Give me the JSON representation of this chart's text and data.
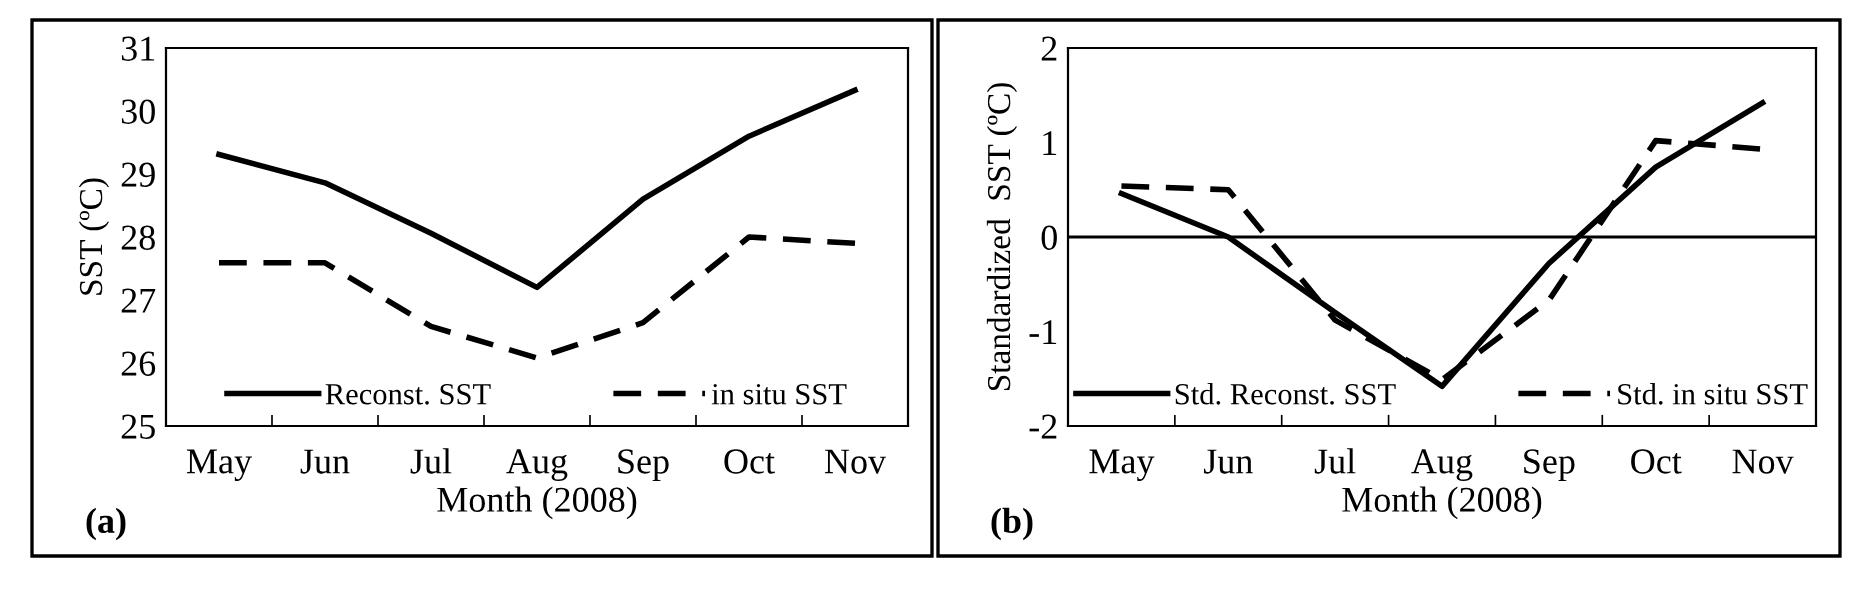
{
  "chart_data": [
    {
      "type": "line",
      "categories": [
        "May",
        "Jun",
        "Jul",
        "Aug",
        "Sep",
        "Oct",
        "Nov"
      ],
      "xlabel": "Month (2008)",
      "ylabel": "SST (ºC)",
      "ylim": [
        25,
        31
      ],
      "yticks": [
        25,
        26,
        27,
        28,
        29,
        30,
        31
      ],
      "grid": false,
      "legend": "bottom",
      "annotations": [
        "(a)"
      ],
      "series": [
        {
          "name": "Reconst. SST",
          "color": "#000000",
          "line_style": "solid",
          "values": [
            29.31,
            28.86,
            28.06,
            27.2,
            28.6,
            29.6,
            30.33
          ]
        },
        {
          "name": "in situ SST",
          "color": "#000000",
          "line_style": "dashed",
          "values": [
            27.59,
            27.59,
            26.58,
            26.08,
            26.64,
            28.0,
            27.9
          ]
        }
      ]
    },
    {
      "type": "line",
      "categories": [
        "May",
        "Jun",
        "Jul",
        "Aug",
        "Sep",
        "Oct",
        "Nov"
      ],
      "xlabel": "Month (2008)",
      "ylabel": "Standardized  SST (ºC)",
      "ylim": [
        -2,
        2
      ],
      "yticks": [
        -2,
        -1,
        0,
        1,
        2
      ],
      "grid": false,
      "legend": "bottom",
      "annotations": [
        "(b)"
      ],
      "ref_lines": [
        {
          "axis": "y",
          "value": 0,
          "color": "#000000"
        }
      ],
      "series": [
        {
          "name": "Std. Reconst. SST",
          "color": "#000000",
          "line_style": "solid",
          "values": [
            0.46,
            0.0,
            -0.8,
            -1.58,
            -0.28,
            0.74,
            1.42
          ]
        },
        {
          "name": "Std. in situ SST",
          "color": "#000000",
          "line_style": "dashed",
          "values": [
            0.54,
            0.5,
            -0.88,
            -1.51,
            -0.67,
            1.02,
            0.93
          ]
        }
      ]
    }
  ]
}
